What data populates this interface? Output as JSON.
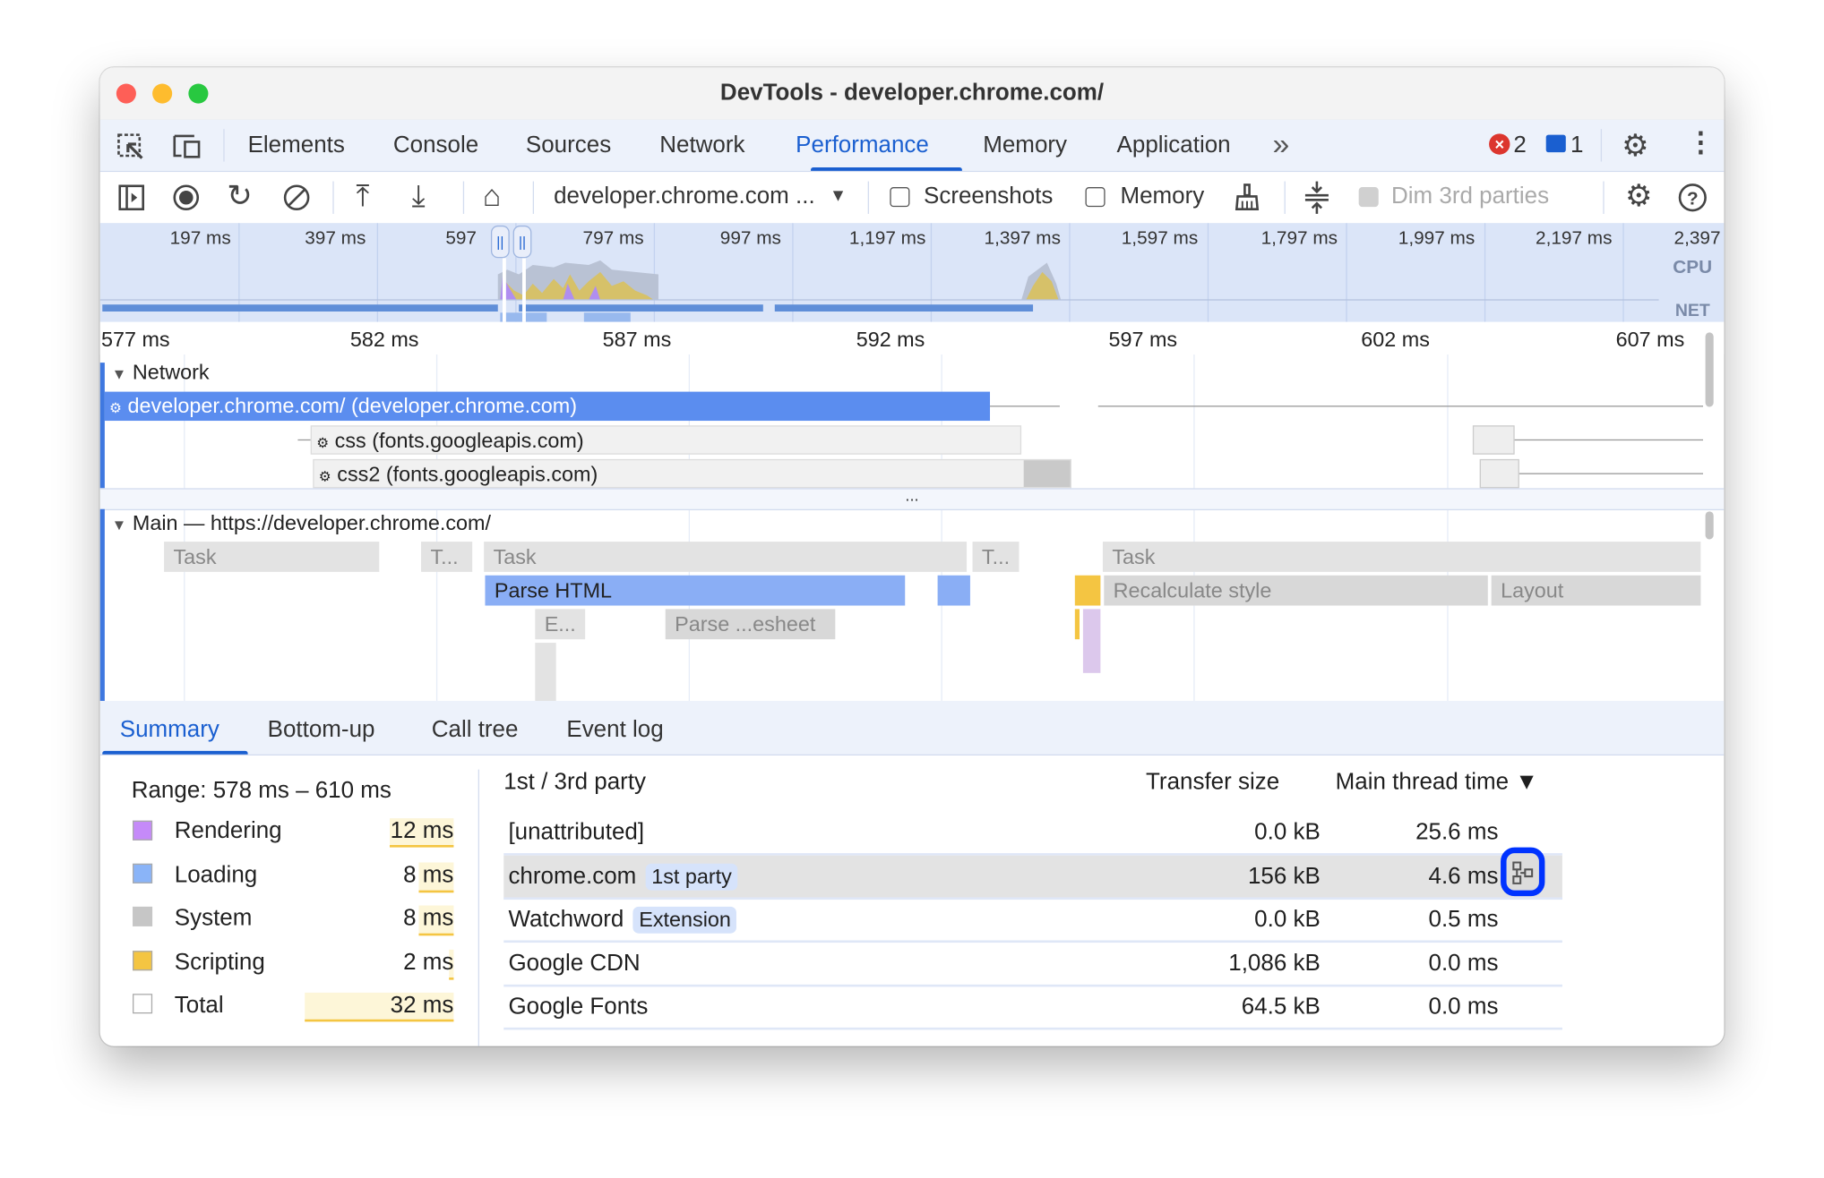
{
  "window": {
    "title": "DevTools - developer.chrome.com/"
  },
  "tabs": [
    {
      "label": "Elements"
    },
    {
      "label": "Console"
    },
    {
      "label": "Sources"
    },
    {
      "label": "Network"
    },
    {
      "label": "Performance",
      "active": true
    },
    {
      "label": "Memory"
    },
    {
      "label": "Application"
    }
  ],
  "tabbar": {
    "more": "»",
    "errors": "2",
    "messages": "1"
  },
  "toolbar": {
    "recording_select": "developer.chrome.com ...",
    "screenshots_label": "Screenshots",
    "screenshots_checked": false,
    "memory_label": "Memory",
    "memory_checked": false,
    "dim_label": "Dim 3rd parties",
    "dim_disabled": true
  },
  "overview": {
    "ticks": [
      "197 ms",
      "397 ms",
      "597 ms",
      "797 ms",
      "997 ms",
      "1,197 ms",
      "1,397 ms",
      "1,597 ms",
      "1,797 ms",
      "1,997 ms",
      "2,197 ms",
      "2,397"
    ],
    "cpu_label": "CPU",
    "net_label": "NET"
  },
  "ruler": {
    "ticks": [
      "577 ms",
      "582 ms",
      "587 ms",
      "592 ms",
      "597 ms",
      "602 ms",
      "607 ms"
    ]
  },
  "network": {
    "header": "Network",
    "rows": [
      {
        "label": "developer.chrome.com/ (developer.chrome.com)"
      },
      {
        "label": "css (fonts.googleapis.com)"
      },
      {
        "label": "css2 (fonts.googleapis.com)"
      }
    ],
    "divider": "..."
  },
  "main": {
    "header": "Main — https://developer.chrome.com/",
    "tasks": [
      "Task",
      "T...",
      "Task",
      "T...",
      "Task"
    ],
    "events": [
      "Parse HTML",
      "Recalculate style",
      "Layout",
      "E...",
      "Parse ...esheet"
    ]
  },
  "bottom_tabs": [
    {
      "label": "Summary",
      "active": true
    },
    {
      "label": "Bottom-up"
    },
    {
      "label": "Call tree"
    },
    {
      "label": "Event log"
    }
  ],
  "summary": {
    "range": "Range: 578 ms – 610 ms",
    "categories": [
      {
        "label": "Rendering",
        "value": "12 ms",
        "color": "#c58af9"
      },
      {
        "label": "Loading",
        "value": "8 ms",
        "color": "#8ab4f8"
      },
      {
        "label": "System",
        "value": "8 ms",
        "color": "#c6c6c6"
      },
      {
        "label": "Scripting",
        "value": "2 ms",
        "color": "#f4c542"
      },
      {
        "label": "Total",
        "value": "32 ms",
        "color": "#ffffff"
      }
    ]
  },
  "party_table": {
    "headers": {
      "party": "1st / 3rd party",
      "transfer": "Transfer size",
      "main": "Main thread time ▼"
    },
    "rows": [
      {
        "name": "[unattributed]",
        "badge": "",
        "transfer": "0.0 kB",
        "main": "25.6 ms"
      },
      {
        "name": "chrome.com",
        "badge": "1st party",
        "transfer": "156 kB",
        "main": "4.6 ms",
        "selected": true
      },
      {
        "name": "Watchword",
        "badge": "Extension",
        "transfer": "0.0 kB",
        "main": "0.5 ms"
      },
      {
        "name": "Google CDN",
        "badge": "",
        "transfer": "1,086 kB",
        "main": "0.0 ms"
      },
      {
        "name": "Google Fonts",
        "badge": "",
        "transfer": "64.5 kB",
        "main": "0.0 ms"
      }
    ]
  },
  "colors": {
    "accent": "#1a5fd0",
    "network_bar": "#5b8def",
    "parse_html": "#8aaef5",
    "scripting": "#f4c542",
    "highlight_ring": "#0033ff"
  }
}
